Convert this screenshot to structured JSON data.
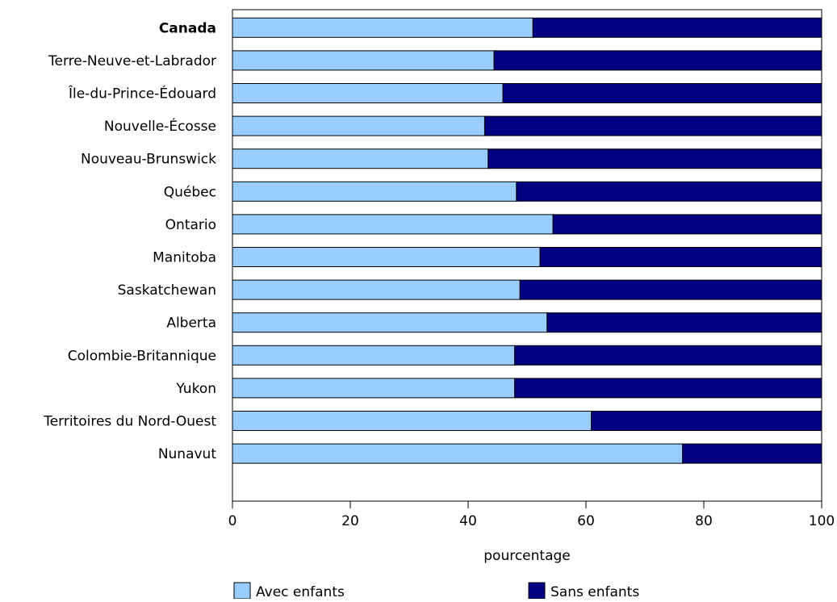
{
  "chart_data": {
    "type": "bar",
    "orientation": "horizontal",
    "stacked": true,
    "categories": [
      "Canada",
      "Terre-Neuve-et-Labrador",
      "Île-du-Prince-Édouard",
      "Nouvelle-Écosse",
      "Nouveau-Brunswick",
      "Québec",
      "Ontario",
      "Manitoba",
      "Saskatchewan",
      "Alberta",
      "Colombie-Britannique",
      "Yukon",
      "Territoires du Nord-Ouest",
      "Nunavut"
    ],
    "bold_categories": [
      "Canada"
    ],
    "series": [
      {
        "name": "Avec enfants",
        "color": "#99ccff",
        "values": [
          51.0,
          44.4,
          45.9,
          42.8,
          43.4,
          48.2,
          54.4,
          52.2,
          48.8,
          53.4,
          47.9,
          47.9,
          60.9,
          76.4
        ]
      },
      {
        "name": "Sans enfants",
        "color": "#000080",
        "values": [
          49.0,
          55.6,
          54.1,
          57.2,
          56.6,
          51.8,
          45.6,
          47.8,
          51.2,
          46.6,
          52.1,
          52.1,
          39.1,
          23.6
        ]
      }
    ],
    "xlabel": "pourcentage",
    "ylabel": "",
    "xlim": [
      0,
      100
    ],
    "xticks": [
      0,
      20,
      40,
      60,
      80,
      100
    ],
    "grid": false,
    "legend_position": "bottom"
  }
}
